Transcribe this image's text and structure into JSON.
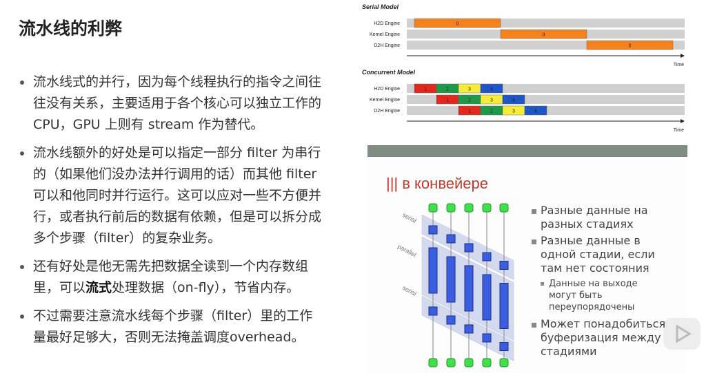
{
  "header": {
    "title": "流水线的利弊"
  },
  "bullets": [
    {
      "parts": [
        "流水线式的并行，因为每个线程执行的指令之间往往没有关系，主要适用于各个核心可以独立工作的 CPU，GPU 上则有 stream 作为替代。"
      ]
    },
    {
      "parts": [
        "流水线额外的好处是可以指定一部分 filter 为串行的（如果他们没办法并行调用的话）而其他 filter 可以和他同时并行运行。这可以应对一些不方便并行，或者执行前后的数据有依赖，但是可以拆分成多个步骤（filter）的复杂业务。"
      ]
    },
    {
      "parts": [
        "还有好处是他无需先把数据全读到一个内存数组里，可以",
        "流式",
        "处理数据（on-fly），节省内存。"
      ]
    },
    {
      "parts": [
        "不过需要注意流水线每个步骤（filter）里的工作量最好足够大，否则无法掩盖调度overhead。"
      ]
    }
  ],
  "serial_model": {
    "title": "Serial Model",
    "rows": [
      {
        "label": "H2D Engine",
        "blocks": [
          "0"
        ]
      },
      {
        "label": "Kernel Engine",
        "blocks": [
          "0"
        ]
      },
      {
        "label": "D2H Engine",
        "blocks": [
          "0"
        ]
      }
    ],
    "axis_label": "Time"
  },
  "concurrent_model": {
    "title": "Concurrent Model",
    "rows": [
      {
        "label": "H2D Engine",
        "blocks": [
          "1",
          "2",
          "3",
          "4"
        ]
      },
      {
        "label": "Kernel Engine",
        "blocks": [
          "1",
          "2",
          "3",
          "4"
        ]
      },
      {
        "label": "D2H Engine",
        "blocks": [
          "1",
          "2",
          "3",
          "4"
        ]
      }
    ],
    "axis_label": "Time"
  },
  "russian_slide": {
    "title": "||| в конвейере",
    "lane_labels": [
      "serial",
      "parallel",
      "serial"
    ],
    "points": [
      {
        "lines": [
          "Разные данные на",
          "разных стадиях"
        ]
      },
      {
        "lines": [
          "Разные данные в",
          "одной стадии, если",
          "там нет состояния"
        ]
      },
      {
        "lines": [
          "Данные на выходе",
          "могут быть",
          "переупорядочены"
        ],
        "sub": true
      },
      {
        "lines": [
          "Может понадобиться",
          "буферизация между",
          "стадиями"
        ]
      }
    ]
  }
}
